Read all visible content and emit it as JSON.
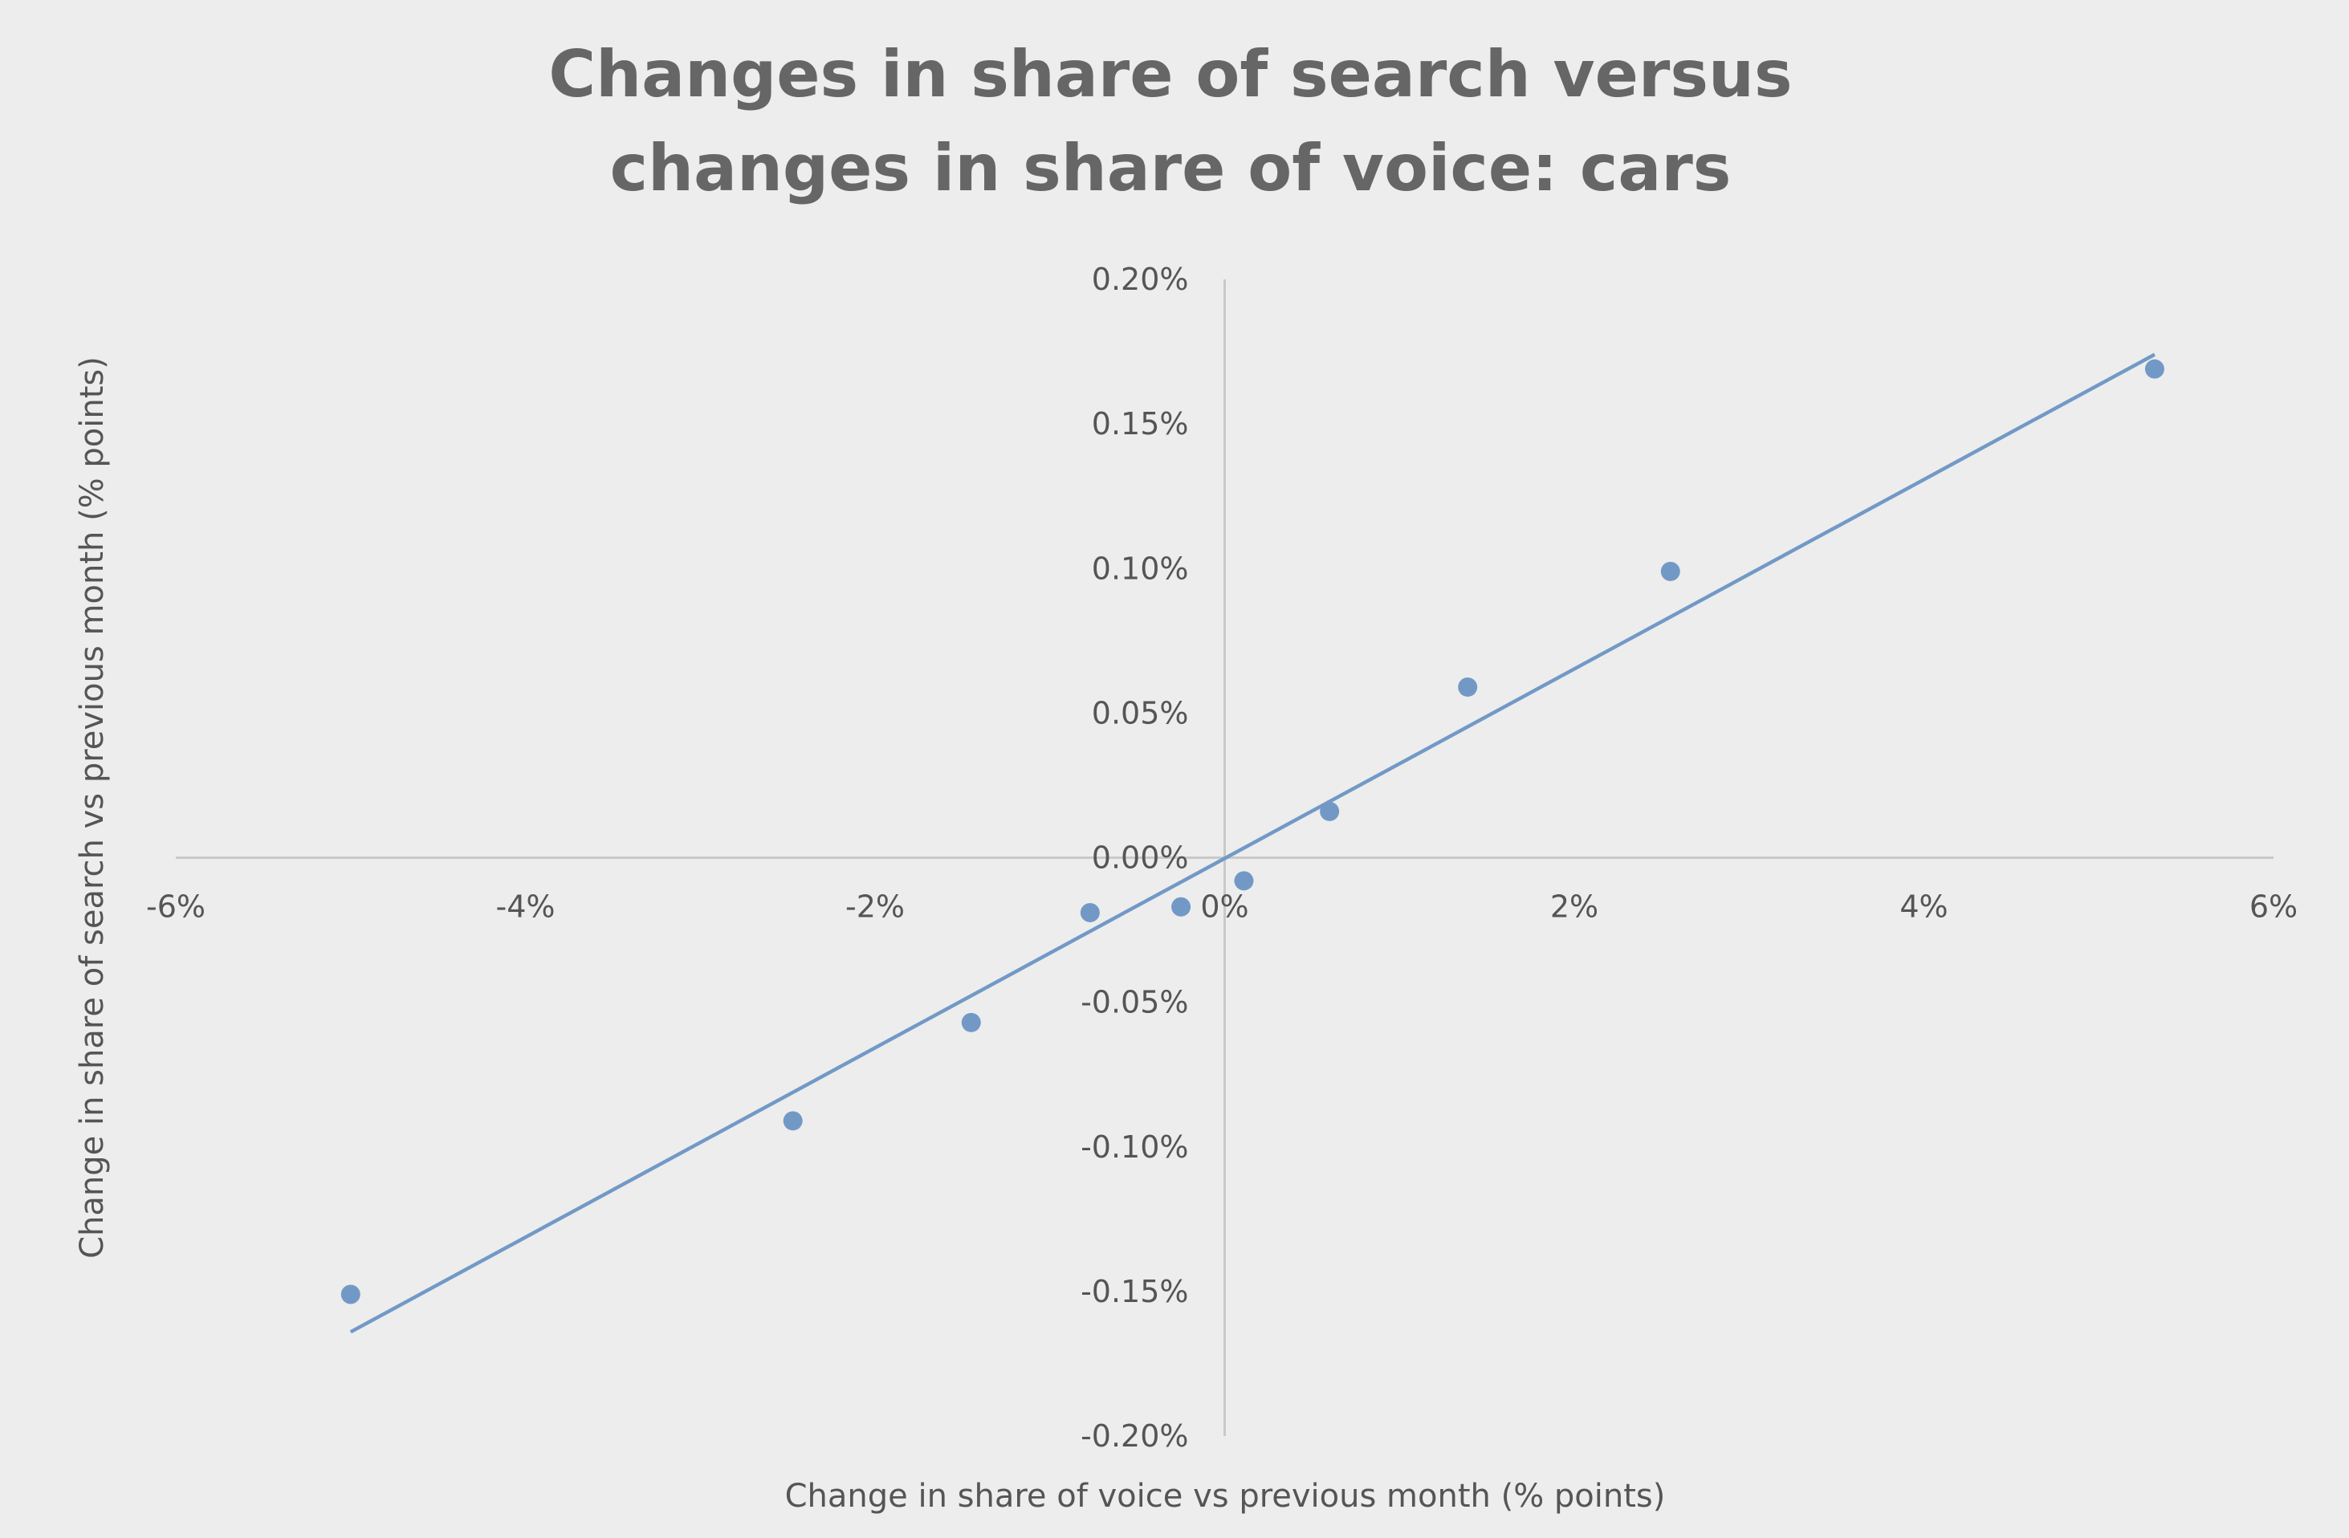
{
  "chart_data": {
    "type": "scatter",
    "title": [
      "Changes in share of search versus",
      "changes in share of voice: cars"
    ],
    "xlabel": "Change in share of voice vs previous month (% points)",
    "ylabel": "Change in share of search vs previous month (% points)",
    "xlim": [
      -6,
      6
    ],
    "ylim": [
      -0.2,
      0.2
    ],
    "x_ticks": [
      -6,
      -4,
      -2,
      0,
      2,
      4,
      6
    ],
    "x_tick_labels": [
      "-6%",
      "-4%",
      "-2%",
      "0%",
      "2%",
      "4%",
      "6%"
    ],
    "y_ticks": [
      0.2,
      0.15,
      0.1,
      0.05,
      0.0,
      -0.05,
      -0.1,
      -0.15,
      -0.2
    ],
    "y_tick_labels": [
      "0.20%",
      "0.15%",
      "0.10%",
      "0.05%",
      "0.00%",
      "-0.05%",
      "-0.10%",
      "-0.15%",
      "-0.20%"
    ],
    "grid": false,
    "series": [
      {
        "points": [
          {
            "x": -5.0,
            "y": -0.151
          },
          {
            "x": -2.47,
            "y": -0.091
          },
          {
            "x": -1.45,
            "y": -0.057
          },
          {
            "x": -0.77,
            "y": -0.019
          },
          {
            "x": -0.25,
            "y": -0.017
          },
          {
            "x": 0.11,
            "y": -0.008
          },
          {
            "x": 0.6,
            "y": 0.016
          },
          {
            "x": 1.39,
            "y": 0.059
          },
          {
            "x": 2.55,
            "y": 0.099
          },
          {
            "x": 5.32,
            "y": 0.169
          }
        ]
      }
    ],
    "trendline": {
      "type": "linear",
      "x_range": [
        -5.0,
        5.32
      ],
      "y_range": [
        -0.164,
        0.174
      ]
    },
    "colors": {
      "background": "#ededed",
      "marker": "#7299c6",
      "trendline": "#7299c6",
      "axis": "#c9c9c9",
      "text": "#555555",
      "title": "#666666"
    }
  }
}
